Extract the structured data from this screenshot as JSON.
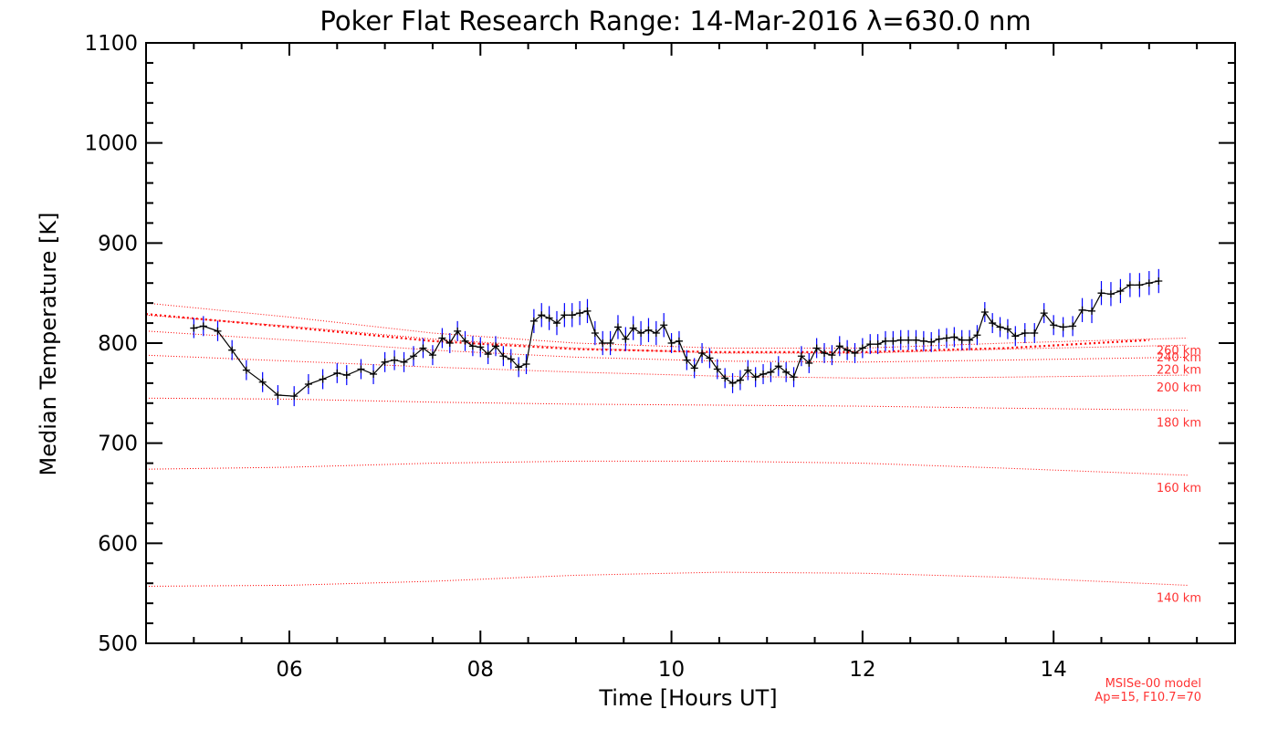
{
  "chart_data": {
    "type": "line",
    "title": "Poker Flat Research Range: 14-Mar-2016 λ=630.0 nm",
    "xlabel": "Time [Hours UT]",
    "ylabel": "Median Temperature [K]",
    "xlim": [
      4.5,
      15.9
    ],
    "ylim": [
      500,
      1100
    ],
    "xticks": [
      6,
      8,
      10,
      12,
      14
    ],
    "xtick_labels": [
      "06",
      "08",
      "10",
      "12",
      "14"
    ],
    "yticks": [
      500,
      600,
      700,
      800,
      900,
      1000,
      1100
    ],
    "ytick_labels": [
      "500",
      "600",
      "700",
      "800",
      "900",
      "1000",
      "1100"
    ],
    "grid": false,
    "colors": {
      "data": "#000000",
      "error": "#0000ff",
      "model": "#ff0000"
    },
    "series": [
      {
        "name": "",
        "x": [
          5.0,
          5.1,
          5.25,
          5.4,
          5.55,
          5.72,
          5.88,
          6.05,
          6.2,
          6.35,
          6.5,
          6.6,
          6.75,
          6.88,
          7.0,
          7.1,
          7.2,
          7.3,
          7.4,
          7.5,
          7.6,
          7.68,
          7.76,
          7.84,
          7.92,
          8.0,
          8.08,
          8.16,
          8.24,
          8.32,
          8.4,
          8.48,
          8.56,
          8.64,
          8.72,
          8.8,
          8.88,
          8.96,
          9.04,
          9.12,
          9.2,
          9.28,
          9.36,
          9.44,
          9.52,
          9.6,
          9.68,
          9.76,
          9.84,
          9.92,
          10.0,
          10.08,
          10.16,
          10.24,
          10.32,
          10.4,
          10.48,
          10.56,
          10.64,
          10.72,
          10.8,
          10.88,
          10.96,
          11.04,
          11.12,
          11.2,
          11.28,
          11.36,
          11.44,
          11.52,
          11.6,
          11.68,
          11.76,
          11.84,
          11.92,
          12.0,
          12.08,
          12.16,
          12.24,
          12.32,
          12.4,
          12.48,
          12.56,
          12.64,
          12.72,
          12.8,
          12.88,
          12.96,
          13.04,
          13.12,
          13.2,
          13.28,
          13.36,
          13.44,
          13.52,
          13.6,
          13.7,
          13.8,
          13.9,
          14.0,
          14.1,
          14.2,
          14.3,
          14.4,
          14.5,
          14.6,
          14.7,
          14.8,
          14.9,
          15.0,
          15.1
        ],
        "values": [
          815,
          817,
          812,
          793,
          773,
          761,
          748,
          747,
          759,
          764,
          770,
          768,
          774,
          769,
          781,
          783,
          781,
          787,
          795,
          788,
          805,
          800,
          812,
          802,
          797,
          796,
          789,
          797,
          787,
          784,
          776,
          779,
          822,
          828,
          825,
          820,
          828,
          828,
          830,
          832,
          810,
          800,
          800,
          816,
          804,
          815,
          810,
          813,
          810,
          818,
          800,
          802,
          783,
          775,
          790,
          785,
          774,
          765,
          760,
          763,
          773,
          766,
          769,
          771,
          777,
          771,
          766,
          787,
          780,
          795,
          790,
          788,
          797,
          793,
          790,
          795,
          799,
          799,
          802,
          802,
          803,
          803,
          803,
          802,
          801,
          804,
          805,
          806,
          803,
          803,
          808,
          831,
          820,
          816,
          814,
          807,
          810,
          810,
          830,
          818,
          816,
          817,
          833,
          832,
          850,
          849,
          852,
          858,
          858,
          860,
          862
        ],
        "errors": [
          10,
          10,
          10,
          10,
          10,
          10,
          10,
          10,
          10,
          10,
          10,
          10,
          10,
          10,
          10,
          10,
          10,
          10,
          10,
          10,
          10,
          10,
          10,
          10,
          10,
          10,
          10,
          10,
          10,
          10,
          10,
          10,
          12,
          12,
          12,
          12,
          12,
          12,
          12,
          12,
          12,
          12,
          12,
          12,
          12,
          12,
          12,
          12,
          12,
          12,
          10,
          10,
          10,
          10,
          10,
          10,
          10,
          10,
          10,
          10,
          10,
          10,
          10,
          10,
          10,
          10,
          10,
          10,
          10,
          10,
          10,
          10,
          10,
          10,
          10,
          10,
          10,
          10,
          10,
          10,
          10,
          10,
          10,
          10,
          10,
          10,
          10,
          10,
          10,
          10,
          10,
          10,
          10,
          10,
          10,
          10,
          10,
          10,
          10,
          10,
          10,
          10,
          12,
          12,
          12,
          12,
          12,
          12,
          12,
          12,
          12
        ]
      }
    ],
    "model_curves": [
      {
        "label": "140 km",
        "x": [
          4.5,
          6.0,
          7.5,
          9.0,
          10.5,
          12.0,
          13.5,
          15.4
        ],
        "values": [
          557,
          558,
          562,
          568,
          571,
          570,
          566,
          558
        ]
      },
      {
        "label": "160 km",
        "x": [
          4.5,
          6.0,
          7.5,
          9.0,
          10.5,
          12.0,
          13.5,
          15.4
        ],
        "values": [
          674,
          676,
          680,
          682,
          682,
          680,
          675,
          668
        ]
      },
      {
        "label": "180 km",
        "x": [
          4.5,
          6.0,
          7.5,
          9.0,
          10.5,
          12.0,
          13.5,
          15.4
        ],
        "values": [
          745,
          744,
          741,
          739,
          738,
          737,
          735,
          733
        ]
      },
      {
        "label": "200 km",
        "x": [
          4.5,
          6.0,
          7.5,
          9.0,
          10.5,
          12.0,
          13.5,
          15.4
        ],
        "values": [
          788,
          782,
          776,
          771,
          767,
          765,
          766,
          768
        ]
      },
      {
        "label": "220 km",
        "x": [
          4.5,
          6.0,
          7.5,
          9.0,
          10.5,
          12.0,
          13.5,
          15.4
        ],
        "values": [
          812,
          803,
          793,
          786,
          782,
          781,
          783,
          786
        ]
      },
      {
        "label": "240 km",
        "x": [
          4.5,
          6.0,
          7.5,
          9.0,
          10.5,
          12.0,
          13.5,
          15.4
        ],
        "values": [
          828,
          817,
          804,
          795,
          790,
          790,
          794,
          798
        ]
      },
      {
        "label": "260 km",
        "x": [
          4.5,
          6.0,
          7.5,
          9.0,
          10.5,
          12.0,
          13.5,
          15.4
        ],
        "values": [
          840,
          826,
          810,
          800,
          795,
          795,
          800,
          805
        ]
      }
    ],
    "model_fit": {
      "x": [
        4.5,
        6.0,
        7.5,
        9.0,
        10.5,
        12.0,
        13.5,
        15.0
      ],
      "values": [
        829,
        816,
        802,
        794,
        791,
        791,
        795,
        803
      ]
    },
    "model_note": [
      "MSISe-00 model",
      "Ap=15, F10.7=70"
    ]
  }
}
